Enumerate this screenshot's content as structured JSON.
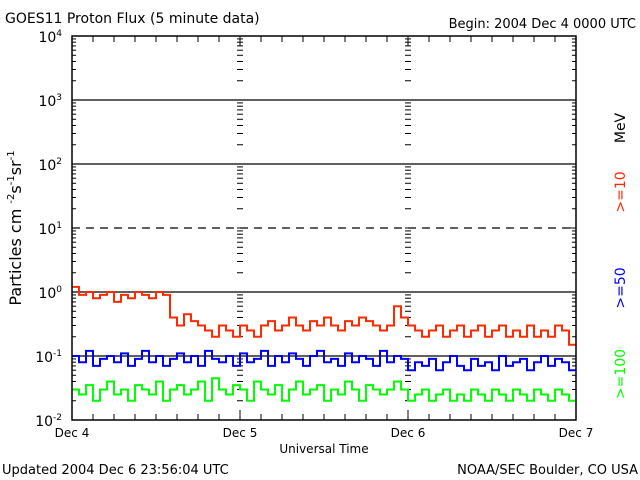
{
  "chart_data": {
    "type": "line",
    "title": "GOES11 Proton Flux (5 minute data)",
    "subtitle": "Begin: 2004 Dec 4 0000 UTC",
    "xlabel": "Universal Time",
    "ylabel": "Particles cm",
    "ylabel_units": [
      [
        "-2",
        "s"
      ],
      [
        "-1",
        "sr"
      ],
      [
        "-1",
        ""
      ]
    ],
    "y_scale": "log",
    "ylim": [
      0.01,
      10000
    ],
    "y_ticks": [
      {
        "base": "10",
        "exp": "4"
      },
      {
        "base": "10",
        "exp": "3"
      },
      {
        "base": "10",
        "exp": "2"
      },
      {
        "base": "10",
        "exp": "1"
      },
      {
        "base": "10",
        "exp": "0"
      },
      {
        "base": "10",
        "exp": "-1"
      },
      {
        "base": "10",
        "exp": "-2"
      }
    ],
    "y_gridlines": [
      {
        "value": 1000,
        "style": "solid"
      },
      {
        "value": 100,
        "style": "solid"
      },
      {
        "value": 10,
        "style": "dashed"
      },
      {
        "value": 1,
        "style": "solid"
      },
      {
        "value": 0.1,
        "style": "solid"
      }
    ],
    "x_tick_labels": [
      "Dec 4",
      "Dec 5",
      "Dec 6",
      "Dec 7"
    ],
    "xlim_hours": [
      0,
      72
    ],
    "x_step_hours": 1,
    "units_label": "MeV",
    "series": [
      {
        "name": ">=10",
        "color": "#ff2a00",
        "values": [
          1.2,
          0.9,
          1.0,
          0.8,
          0.9,
          1.0,
          0.7,
          0.9,
          0.8,
          1.0,
          0.9,
          0.8,
          1.0,
          0.9,
          0.4,
          0.3,
          0.45,
          0.35,
          0.3,
          0.25,
          0.2,
          0.3,
          0.25,
          0.2,
          0.3,
          0.25,
          0.2,
          0.3,
          0.35,
          0.25,
          0.3,
          0.4,
          0.3,
          0.25,
          0.35,
          0.3,
          0.4,
          0.3,
          0.25,
          0.35,
          0.3,
          0.4,
          0.35,
          0.3,
          0.25,
          0.3,
          0.6,
          0.4,
          0.3,
          0.25,
          0.2,
          0.25,
          0.3,
          0.2,
          0.25,
          0.3,
          0.2,
          0.25,
          0.3,
          0.2,
          0.25,
          0.3,
          0.2,
          0.25,
          0.2,
          0.3,
          0.2,
          0.25,
          0.2,
          0.3,
          0.25,
          0.15
        ]
      },
      {
        "name": ">=50",
        "color": "#0000ff",
        "values": [
          0.1,
          0.08,
          0.12,
          0.07,
          0.09,
          0.1,
          0.08,
          0.11,
          0.07,
          0.09,
          0.12,
          0.08,
          0.1,
          0.07,
          0.09,
          0.11,
          0.08,
          0.1,
          0.07,
          0.12,
          0.09,
          0.08,
          0.1,
          0.07,
          0.11,
          0.08,
          0.09,
          0.12,
          0.07,
          0.1,
          0.08,
          0.11,
          0.09,
          0.07,
          0.1,
          0.12,
          0.08,
          0.09,
          0.07,
          0.11,
          0.08,
          0.1,
          0.09,
          0.07,
          0.12,
          0.08,
          0.1,
          0.09,
          0.06,
          0.08,
          0.07,
          0.09,
          0.06,
          0.08,
          0.1,
          0.07,
          0.06,
          0.09,
          0.07,
          0.08,
          0.06,
          0.1,
          0.07,
          0.08,
          0.09,
          0.06,
          0.08,
          0.1,
          0.07,
          0.09,
          0.08,
          0.06
        ]
      },
      {
        "name": ">=100",
        "color": "#00ff00",
        "values": [
          0.03,
          0.025,
          0.035,
          0.02,
          0.03,
          0.04,
          0.025,
          0.03,
          0.02,
          0.035,
          0.03,
          0.025,
          0.04,
          0.02,
          0.03,
          0.035,
          0.025,
          0.03,
          0.04,
          0.02,
          0.045,
          0.03,
          0.025,
          0.035,
          0.03,
          0.02,
          0.04,
          0.03,
          0.025,
          0.035,
          0.02,
          0.03,
          0.04,
          0.025,
          0.03,
          0.035,
          0.02,
          0.03,
          0.025,
          0.04,
          0.03,
          0.02,
          0.035,
          0.03,
          0.025,
          0.03,
          0.04,
          0.03,
          0.02,
          0.025,
          0.03,
          0.02,
          0.025,
          0.03,
          0.02,
          0.025,
          0.02,
          0.03,
          0.025,
          0.02,
          0.03,
          0.025,
          0.02,
          0.03,
          0.025,
          0.02,
          0.03,
          0.025,
          0.02,
          0.03,
          0.025,
          0.02
        ]
      }
    ]
  },
  "footer": {
    "updated": "Updated 2004 Dec  6 23:56:04 UTC",
    "source": "NOAA/SEC Boulder, CO USA"
  }
}
